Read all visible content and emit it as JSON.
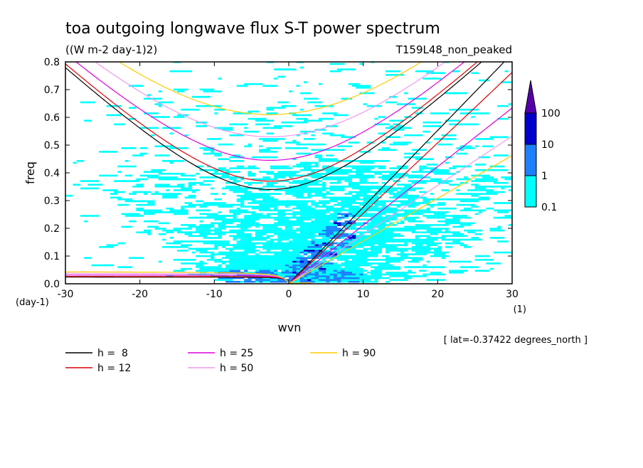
{
  "chart_data": {
    "type": "heatmap",
    "title": "toa outgoing longwave flux S-T power spectrum",
    "subtitle": "((W m-2 day-1)2)",
    "run_label": "T159L48_non_peaked",
    "xlabel": "wvn",
    "ylabel": "freq",
    "y_unit": "(day-1)",
    "x_unit": "(1)",
    "xlim": [
      -30,
      30
    ],
    "ylim": [
      0,
      0.8
    ],
    "x_ticks": [
      -30,
      -20,
      -10,
      0,
      10,
      20,
      30
    ],
    "x_tick_labels": [
      "-30",
      "-20",
      "-10",
      "0",
      "10",
      "20",
      "30"
    ],
    "y_ticks": [
      0,
      0.1,
      0.2,
      0.3,
      0.4,
      0.5,
      0.6,
      0.7,
      0.8
    ],
    "y_tick_labels": [
      "0.0",
      "0.1",
      "0.2",
      "0.3",
      "0.4",
      "0.5",
      "0.6",
      "0.7",
      "0.8"
    ],
    "colorbar": {
      "levels": [
        0.1,
        1,
        10,
        100
      ],
      "labels": [
        "0.1",
        "1",
        "10",
        "100"
      ],
      "colors": [
        "#00ffff",
        "#1e7fff",
        "#0000cc",
        "#5500aa"
      ]
    },
    "annotation": "[ lat=-0.37422 degrees_north ]",
    "dispersion_curves": [
      {
        "label": "h =  8",
        "color": "#000000",
        "cutoff": 0.34
      },
      {
        "label": "h = 12",
        "color": "#dd0000",
        "cutoff": 0.37
      },
      {
        "label": "h = 25",
        "color": "#dd00dd",
        "cutoff": 0.445
      },
      {
        "label": "h = 50",
        "color": "#ee99ee",
        "cutoff": 0.53
      },
      {
        "label": "h = 90",
        "color": "#ffcc00",
        "cutoff": 0.61
      }
    ],
    "legend_position": "bottom-left"
  }
}
